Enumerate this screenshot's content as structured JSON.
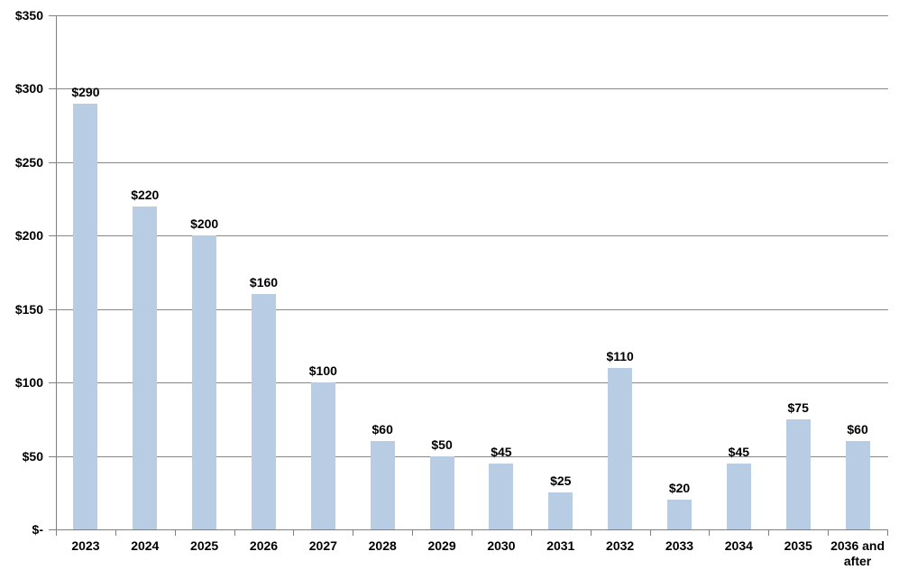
{
  "chart_data": {
    "type": "bar",
    "title": "",
    "xlabel": "",
    "ylabel": "",
    "categories": [
      "2023",
      "2024",
      "2025",
      "2026",
      "2027",
      "2028",
      "2029",
      "2030",
      "2031",
      "2032",
      "2033",
      "2034",
      "2035",
      "2036 and after"
    ],
    "values": [
      290,
      220,
      200,
      160,
      100,
      60,
      50,
      45,
      25,
      110,
      20,
      45,
      75,
      60
    ],
    "value_labels": [
      "$290",
      "$220",
      "$200",
      "$160",
      "$100",
      "$60",
      "$50",
      "$45",
      "$25",
      "$110",
      "$20",
      "$45",
      "$75",
      "$60"
    ],
    "ylim": [
      0,
      350
    ],
    "ytick_step": 50,
    "ytick_labels": [
      "$-",
      "$50",
      "$100",
      "$150",
      "$200",
      "$250",
      "$300",
      "$350"
    ],
    "grid": true,
    "legend": "none",
    "colors": {
      "bar_fill": "#B8CCE4",
      "gridline": "#878787",
      "axis": "#808080",
      "label_text": "#000000",
      "background": "#FFFFFF"
    }
  }
}
